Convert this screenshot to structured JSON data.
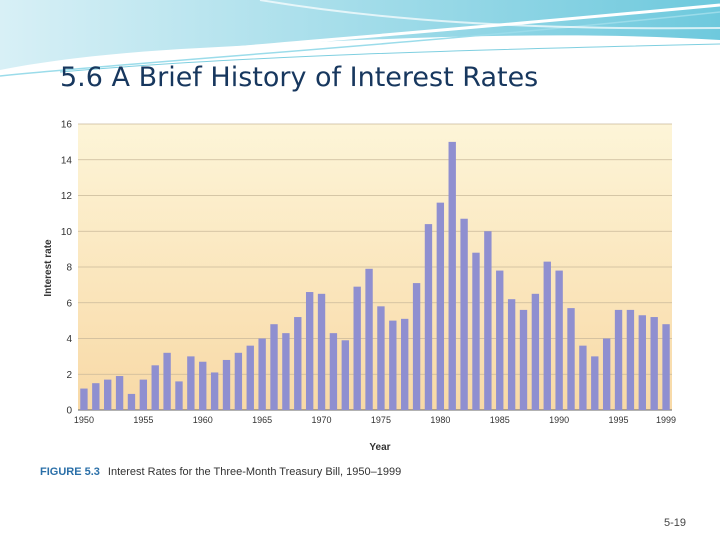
{
  "slide": {
    "title": "5.6 A Brief History of Interest Rates",
    "page_number": "5-19"
  },
  "figure": {
    "label": "FIGURE 5.3",
    "caption": "Interest Rates for the Three-Month Treasury Bill, 1950–1999"
  },
  "colors": {
    "bar": "#8f8fd0",
    "plot_bg_top": "#fdf5d8",
    "plot_bg_bottom": "#f8d9a6",
    "grid": "#c9b99a",
    "title": "#17375e",
    "accent_teal": "#5bc3d8"
  },
  "chart_data": {
    "type": "bar",
    "xlabel": "Year",
    "ylabel": "Interest rate",
    "ylim": [
      0,
      16
    ],
    "yticks": [
      0,
      2,
      4,
      6,
      8,
      10,
      12,
      14,
      16
    ],
    "grid": true,
    "categories": [
      1950,
      1951,
      1952,
      1953,
      1954,
      1955,
      1956,
      1957,
      1958,
      1959,
      1960,
      1961,
      1962,
      1963,
      1964,
      1965,
      1966,
      1967,
      1968,
      1969,
      1970,
      1971,
      1972,
      1973,
      1974,
      1975,
      1976,
      1977,
      1978,
      1979,
      1980,
      1981,
      1982,
      1983,
      1984,
      1985,
      1986,
      1987,
      1988,
      1989,
      1990,
      1991,
      1992,
      1993,
      1994,
      1995,
      1996,
      1997,
      1998,
      1999
    ],
    "x_tick_labels": [
      "1950",
      "1955",
      "1960",
      "1965",
      "1970",
      "1975",
      "1980",
      "1985",
      "1990",
      "1995",
      "1999"
    ],
    "values": [
      1.2,
      1.5,
      1.7,
      1.9,
      0.9,
      1.7,
      2.5,
      3.2,
      1.6,
      3.0,
      2.7,
      2.1,
      2.8,
      3.2,
      3.6,
      4.0,
      4.8,
      4.3,
      5.2,
      6.6,
      6.5,
      4.3,
      3.9,
      6.9,
      7.9,
      5.8,
      5.0,
      5.1,
      7.1,
      10.4,
      11.6,
      15.0,
      10.7,
      8.8,
      10.0,
      7.8,
      6.2,
      5.6,
      6.5,
      8.3,
      7.8,
      5.7,
      3.6,
      3.0,
      4.0,
      5.6,
      5.6,
      5.3,
      5.2,
      4.8
    ]
  }
}
